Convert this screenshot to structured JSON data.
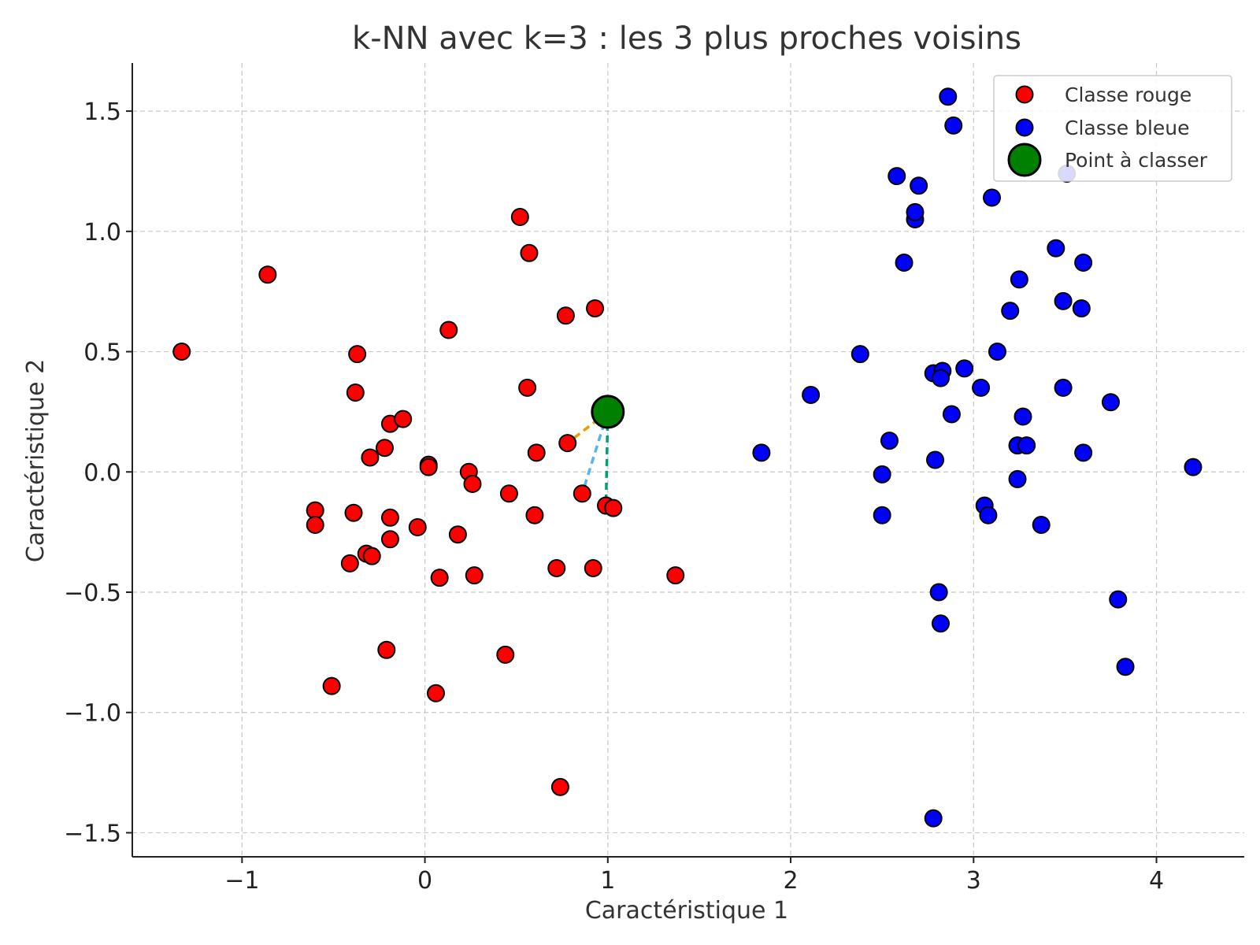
{
  "chart_data": {
    "type": "scatter",
    "title": "k-NN avec k=3 : les 3 plus proches voisins",
    "xlabel": "Caractéristique 1",
    "ylabel": "Caractéristique 2",
    "xlim": [
      -1.6,
      4.48
    ],
    "ylim": [
      -1.6,
      1.7
    ],
    "xticks": [
      -1,
      0,
      1,
      2,
      3,
      4
    ],
    "yticks": [
      -1.5,
      -1.0,
      -0.5,
      0.0,
      0.5,
      1.0,
      1.5
    ],
    "xtick_labels": [
      "−1",
      "0",
      "1",
      "2",
      "3",
      "4"
    ],
    "ytick_labels": [
      "−1.5",
      "−1.0",
      "−0.5",
      "0.0",
      "0.5",
      "1.0",
      "1.5"
    ],
    "grid": true,
    "legend_position": "top-right",
    "series": [
      {
        "name": "Classe rouge",
        "color": "#ff0000",
        "points": [
          [
            -1.33,
            0.5
          ],
          [
            -0.86,
            0.82
          ],
          [
            -0.37,
            0.49
          ],
          [
            -0.38,
            0.33
          ],
          [
            -0.19,
            0.2
          ],
          [
            -0.12,
            0.22
          ],
          [
            -0.22,
            0.1
          ],
          [
            -0.3,
            0.06
          ],
          [
            0.02,
            0.03
          ],
          [
            0.02,
            0.02
          ],
          [
            0.13,
            0.59
          ],
          [
            0.52,
            1.06
          ],
          [
            0.57,
            0.91
          ],
          [
            0.77,
            0.65
          ],
          [
            0.93,
            0.68
          ],
          [
            0.56,
            0.35
          ],
          [
            0.61,
            0.08
          ],
          [
            0.78,
            0.12
          ],
          [
            0.24,
            0.0
          ],
          [
            0.26,
            -0.05
          ],
          [
            -0.6,
            -0.16
          ],
          [
            -0.6,
            -0.22
          ],
          [
            -0.39,
            -0.17
          ],
          [
            -0.19,
            -0.19
          ],
          [
            -0.04,
            -0.23
          ],
          [
            0.18,
            -0.26
          ],
          [
            -0.19,
            -0.28
          ],
          [
            -0.32,
            -0.34
          ],
          [
            -0.29,
            -0.35
          ],
          [
            -0.41,
            -0.38
          ],
          [
            0.46,
            -0.09
          ],
          [
            0.6,
            -0.18
          ],
          [
            0.86,
            -0.09
          ],
          [
            0.99,
            -0.14
          ],
          [
            1.03,
            -0.15
          ],
          [
            0.08,
            -0.44
          ],
          [
            0.27,
            -0.43
          ],
          [
            0.72,
            -0.4
          ],
          [
            0.92,
            -0.4
          ],
          [
            1.37,
            -0.43
          ],
          [
            -0.21,
            -0.74
          ],
          [
            0.44,
            -0.76
          ],
          [
            -0.51,
            -0.89
          ],
          [
            0.06,
            -0.92
          ],
          [
            0.74,
            -1.31
          ]
        ]
      },
      {
        "name": "Classe bleue",
        "color": "#0000ff",
        "points": [
          [
            2.86,
            1.56
          ],
          [
            2.89,
            1.44
          ],
          [
            2.58,
            1.23
          ],
          [
            2.7,
            1.19
          ],
          [
            3.1,
            1.14
          ],
          [
            2.68,
            1.05
          ],
          [
            2.68,
            1.08
          ],
          [
            3.51,
            1.24
          ],
          [
            2.62,
            0.87
          ],
          [
            3.45,
            0.93
          ],
          [
            3.6,
            0.87
          ],
          [
            3.25,
            0.8
          ],
          [
            3.49,
            0.71
          ],
          [
            3.59,
            0.68
          ],
          [
            3.2,
            0.67
          ],
          [
            2.38,
            0.49
          ],
          [
            3.13,
            0.5
          ],
          [
            2.95,
            0.43
          ],
          [
            2.78,
            0.41
          ],
          [
            2.83,
            0.42
          ],
          [
            2.82,
            0.39
          ],
          [
            3.04,
            0.35
          ],
          [
            3.49,
            0.35
          ],
          [
            3.75,
            0.29
          ],
          [
            2.11,
            0.32
          ],
          [
            2.88,
            0.24
          ],
          [
            3.27,
            0.23
          ],
          [
            2.54,
            0.13
          ],
          [
            3.24,
            0.11
          ],
          [
            3.29,
            0.11
          ],
          [
            3.6,
            0.08
          ],
          [
            2.79,
            0.05
          ],
          [
            4.2,
            0.02
          ],
          [
            1.84,
            0.08
          ],
          [
            2.5,
            -0.01
          ],
          [
            3.24,
            -0.03
          ],
          [
            3.06,
            -0.14
          ],
          [
            3.08,
            -0.18
          ],
          [
            2.5,
            -0.18
          ],
          [
            3.37,
            -0.22
          ],
          [
            2.81,
            -0.5
          ],
          [
            3.79,
            -0.53
          ],
          [
            2.82,
            -0.63
          ],
          [
            3.83,
            -0.81
          ],
          [
            2.78,
            -1.44
          ]
        ]
      },
      {
        "name": "Point à classer",
        "color": "#008000",
        "points": [
          [
            1.0,
            0.25
          ]
        ]
      }
    ],
    "neighbor_lines": [
      {
        "from": [
          1.0,
          0.25
        ],
        "to": [
          0.78,
          0.12
        ],
        "color": "#e69f00"
      },
      {
        "from": [
          1.0,
          0.25
        ],
        "to": [
          0.86,
          -0.09
        ],
        "color": "#56b4e9"
      },
      {
        "from": [
          1.0,
          0.25
        ],
        "to": [
          0.99,
          -0.14
        ],
        "color": "#009e73"
      }
    ]
  }
}
